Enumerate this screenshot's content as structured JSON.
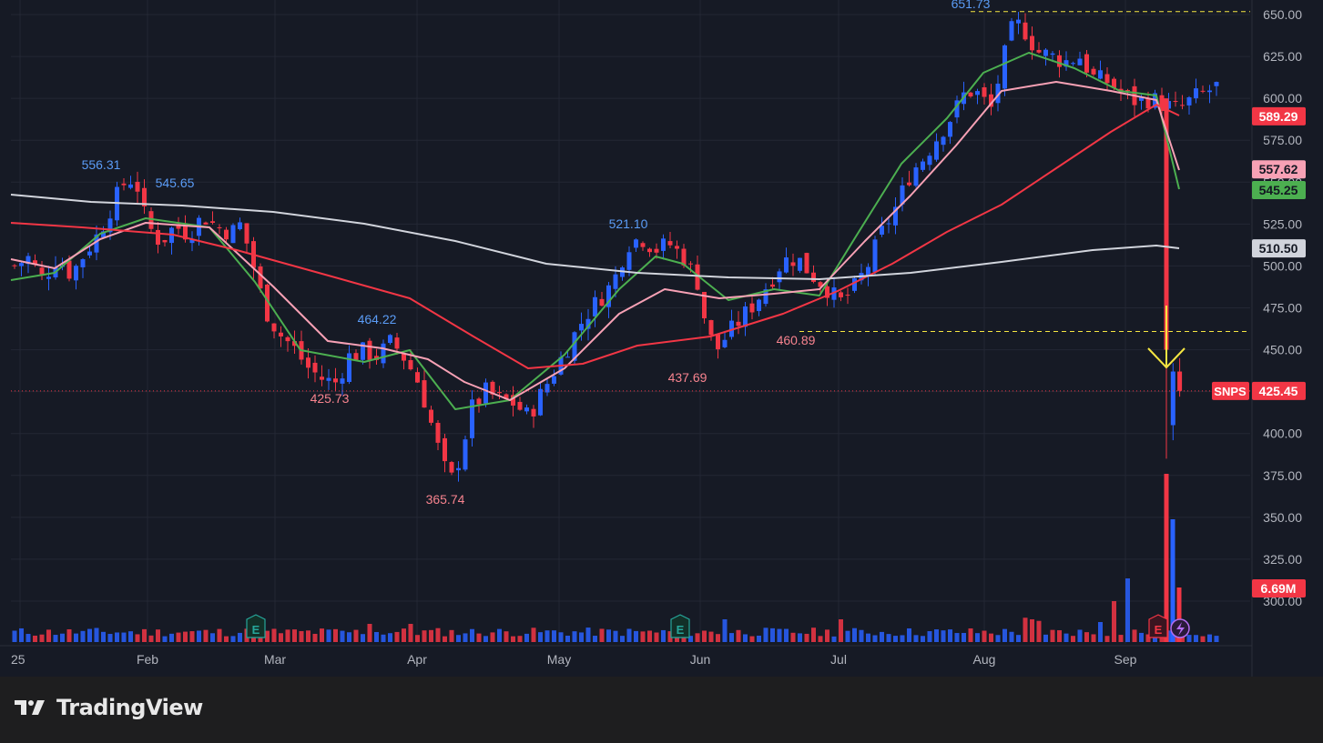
{
  "app": {
    "brand": "TradingView"
  },
  "chart_data": {
    "type": "candlestick",
    "ticker": "SNPS",
    "last_price": "425.45",
    "y_ticks": [
      "650.00",
      "625.00",
      "600.00",
      "575.00",
      "550.00",
      "525.00",
      "500.00",
      "475.00",
      "450.00",
      "425.00",
      "400.00",
      "375.00",
      "350.00",
      "325.00",
      "300.00"
    ],
    "x_ticks": [
      "2025",
      "Feb",
      "Mar",
      "Apr",
      "May",
      "Jun",
      "Jul",
      "Aug",
      "Sep"
    ],
    "ylim": [
      287,
      655
    ],
    "price_badges": [
      {
        "label": "589.29",
        "value": 589.29,
        "bg": "#f23645",
        "color": "#ffffff"
      },
      {
        "label": "557.62",
        "value": 557.62,
        "bg": "#f7a1b5",
        "color": "#131722"
      },
      {
        "label": "545.25",
        "value": 545.25,
        "bg": "#4caf50",
        "color": "#131722"
      },
      {
        "label": "510.50",
        "value": 510.5,
        "bg": "#d1d4dc",
        "color": "#131722"
      },
      {
        "label": "425.45",
        "value": 425.45,
        "bg": "#f23645",
        "color": "#ffffff"
      }
    ],
    "volume_badge": "6.69M",
    "annotations": [
      {
        "label": "651.73",
        "value": 651.73,
        "color": "#5b9cf6",
        "pos": "high"
      },
      {
        "label": "556.31",
        "value": 556.31,
        "color": "#5b9cf6",
        "pos": "high"
      },
      {
        "label": "545.65",
        "value": 545.65,
        "color": "#5b9cf6",
        "pos": "high"
      },
      {
        "label": "464.22",
        "value": 464.22,
        "color": "#5b9cf6",
        "pos": "high"
      },
      {
        "label": "521.10",
        "value": 521.1,
        "color": "#5b9cf6",
        "pos": "high"
      },
      {
        "label": "425.73",
        "value": 425.73,
        "color": "#f7838e",
        "pos": "low"
      },
      {
        "label": "365.74",
        "value": 365.74,
        "color": "#f7838e",
        "pos": "low"
      },
      {
        "label": "437.69",
        "value": 437.69,
        "color": "#f7838e",
        "pos": "low"
      },
      {
        "label": "460.89",
        "value": 460.89,
        "color": "#f7838e",
        "pos": "low"
      }
    ],
    "ref_lines": [
      {
        "value": 651.73,
        "color": "#f5e642",
        "style": "dashed"
      },
      {
        "value": 460.89,
        "color": "#f5e642",
        "style": "dashed"
      },
      {
        "value": 425.45,
        "color": "#f23645",
        "style": "dotted"
      }
    ],
    "earnings_markers": [
      "E",
      "E",
      "E"
    ],
    "moving_averages": [
      {
        "color": "#4caf50",
        "last": 545.25
      },
      {
        "color": "#f7a1b5",
        "last": 557.62
      },
      {
        "color": "#f23645",
        "last": 589.29
      },
      {
        "color": "#d1d4dc",
        "last": 510.5
      }
    ],
    "colors": {
      "up": "#2962ff",
      "down": "#f23645",
      "bg": "#161a25",
      "grid": "#232734",
      "axis_text": "#b2b5be",
      "arrow": "#f5e642"
    }
  }
}
